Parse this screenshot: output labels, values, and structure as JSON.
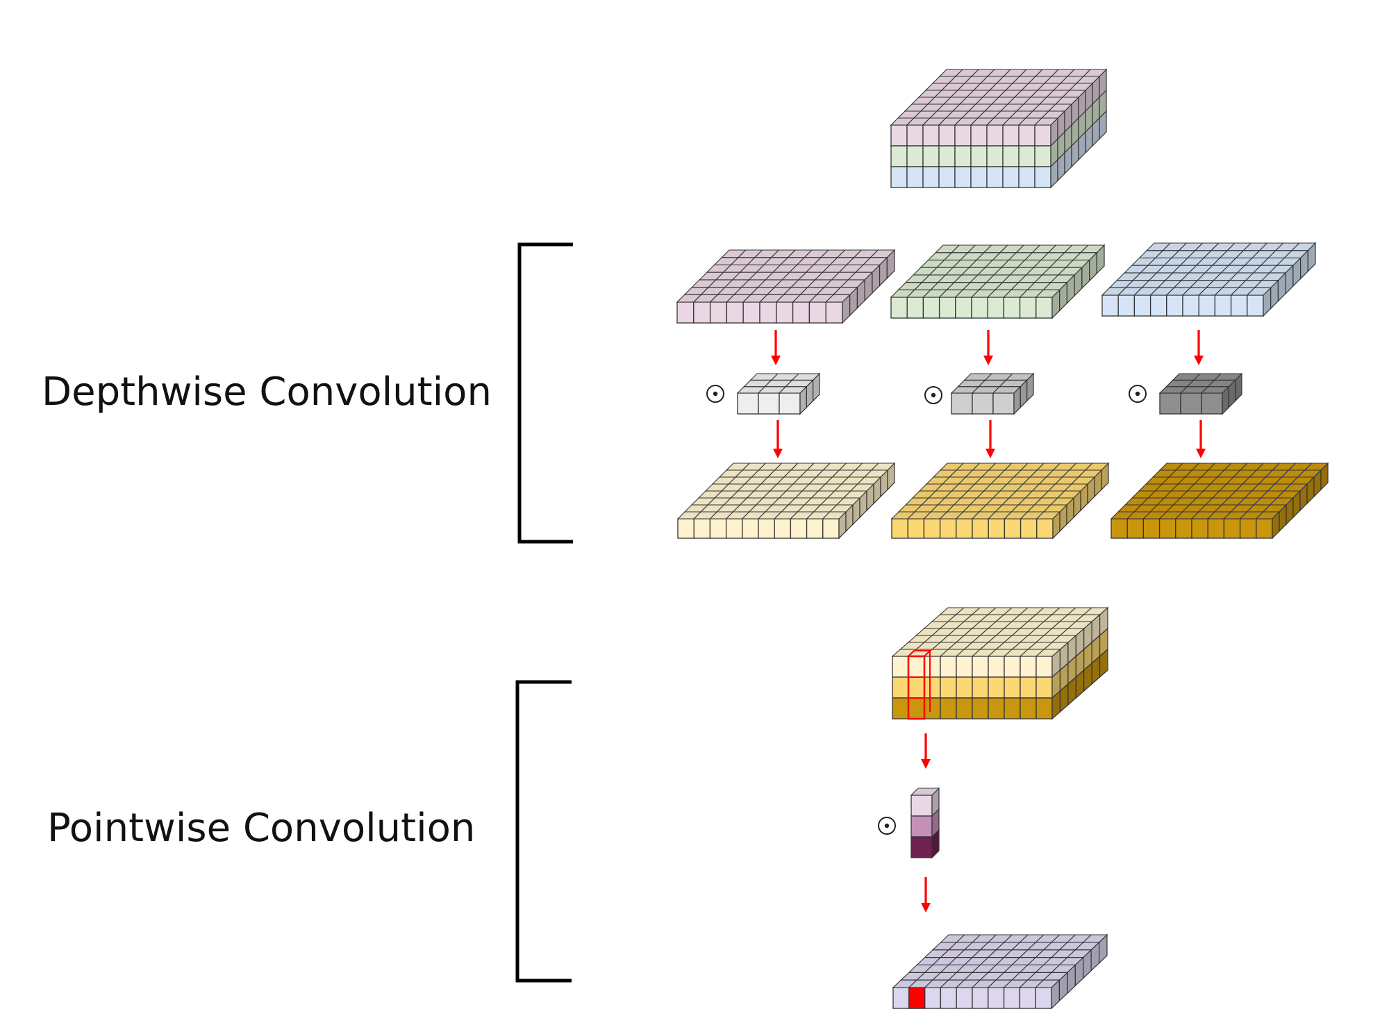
{
  "labels": {
    "depthwise": "Depthwise Convolution",
    "pointwise": "Pointwise Convolution"
  },
  "operator_symbol": "⊙",
  "colors": {
    "input_channel_1": "#ead7e4",
    "input_channel_2": "#dbead3",
    "input_channel_3": "#d6e5f6",
    "kernel_1": "#eeeeee",
    "kernel_2": "#cfcfcf",
    "kernel_3": "#8f8f8f",
    "output_channel_1": "#fff3cf",
    "output_channel_2": "#fbd874",
    "output_channel_3": "#c9960e",
    "pointwise_kernel": [
      "#ead7e4",
      "#c590b8",
      "#6f2150"
    ],
    "pointwise_output": "#dcd6ee",
    "highlight": "#ff0000",
    "arrow": "#ff0000",
    "bracket": "#000000",
    "edge": "#333333"
  }
}
